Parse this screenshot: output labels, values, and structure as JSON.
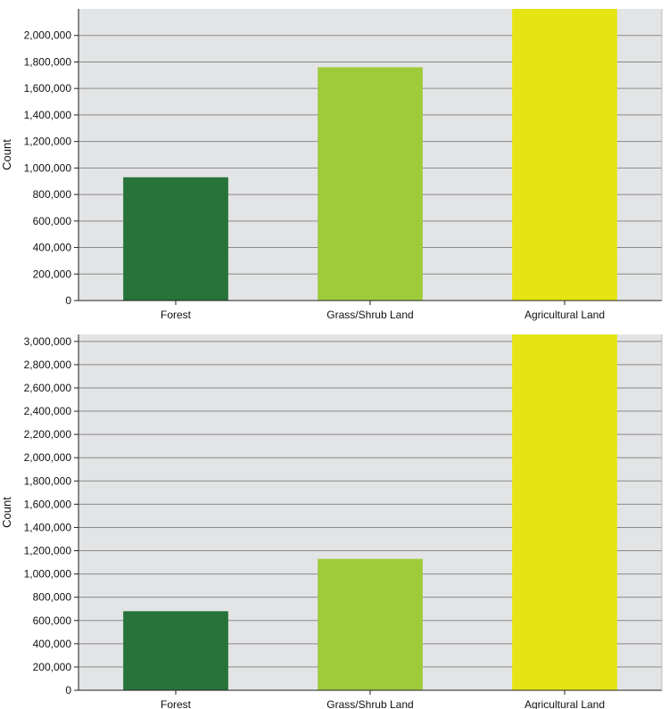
{
  "chart_data": [
    {
      "type": "bar",
      "categories": [
        "Forest",
        "Grass/Shrub Land",
        "Agricultural Land"
      ],
      "values": [
        930000,
        1760000,
        2230000
      ],
      "xlabel": "",
      "ylabel": "Count",
      "ylim": [
        0,
        2200000
      ],
      "yticks": [
        0,
        200000,
        400000,
        600000,
        800000,
        1000000,
        1200000,
        1400000,
        1600000,
        1800000,
        2000000
      ],
      "ytick_labels": [
        "0",
        "200,000",
        "400,000",
        "600,000",
        "800,000",
        "1,000,000",
        "1,200,000",
        "1,400,000",
        "1,600,000",
        "1,800,000",
        "2,000,000"
      ],
      "colors": [
        "#27733a",
        "#9ecb3c",
        "#e5e516"
      ],
      "background": "#e3e4e5",
      "grid": true,
      "legend": "none"
    },
    {
      "type": "bar",
      "categories": [
        "Forest",
        "Grass/Shrub Land",
        "Agricultural Land"
      ],
      "values": [
        680000,
        1130000,
        3100000
      ],
      "xlabel": "",
      "ylabel": "Count",
      "ylim": [
        0,
        3060000
      ],
      "yticks": [
        0,
        200000,
        400000,
        600000,
        800000,
        1000000,
        1200000,
        1400000,
        1600000,
        1800000,
        2000000,
        2200000,
        2400000,
        2600000,
        2800000,
        3000000
      ],
      "ytick_labels": [
        "0",
        "200,000",
        "400,000",
        "600,000",
        "800,000",
        "1,000,000",
        "1,200,000",
        "1,400,000",
        "1,600,000",
        "1,800,000",
        "2,000,000",
        "2,200,000",
        "2,400,000",
        "2,600,000",
        "2,800,000",
        "3,000,000"
      ],
      "colors": [
        "#27733a",
        "#9ecb3c",
        "#e5e516"
      ],
      "background": "#e3e4e5",
      "grid": true,
      "legend": "none"
    }
  ]
}
